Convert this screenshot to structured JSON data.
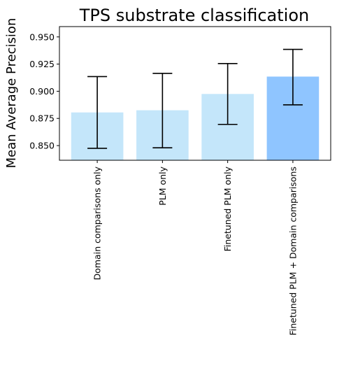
{
  "chart_data": {
    "type": "bar",
    "title": "TPS substrate classification",
    "xlabel": "",
    "ylabel": "Mean Average Precision",
    "ylim": [
      0.8365,
      0.9595
    ],
    "yticks": [
      "0.850",
      "0.875",
      "0.900",
      "0.925",
      "0.950"
    ],
    "yticks_values": [
      0.85,
      0.875,
      0.9,
      0.925,
      0.95
    ],
    "grid": false,
    "categories": [
      "Domain comparisons only",
      "PLM only",
      "Finetuned PLM only",
      "Finetuned PLM + Domain comparisons"
    ],
    "values": [
      0.8805,
      0.8825,
      0.8975,
      0.9135
    ],
    "error_low": [
      0.8475,
      0.848,
      0.8695,
      0.8875
    ],
    "error_high": [
      0.9135,
      0.9165,
      0.9255,
      0.9385
    ],
    "colors": [
      "#c4e6fa",
      "#c4e6fa",
      "#c4e6fa",
      "#8fc5ff"
    ]
  }
}
